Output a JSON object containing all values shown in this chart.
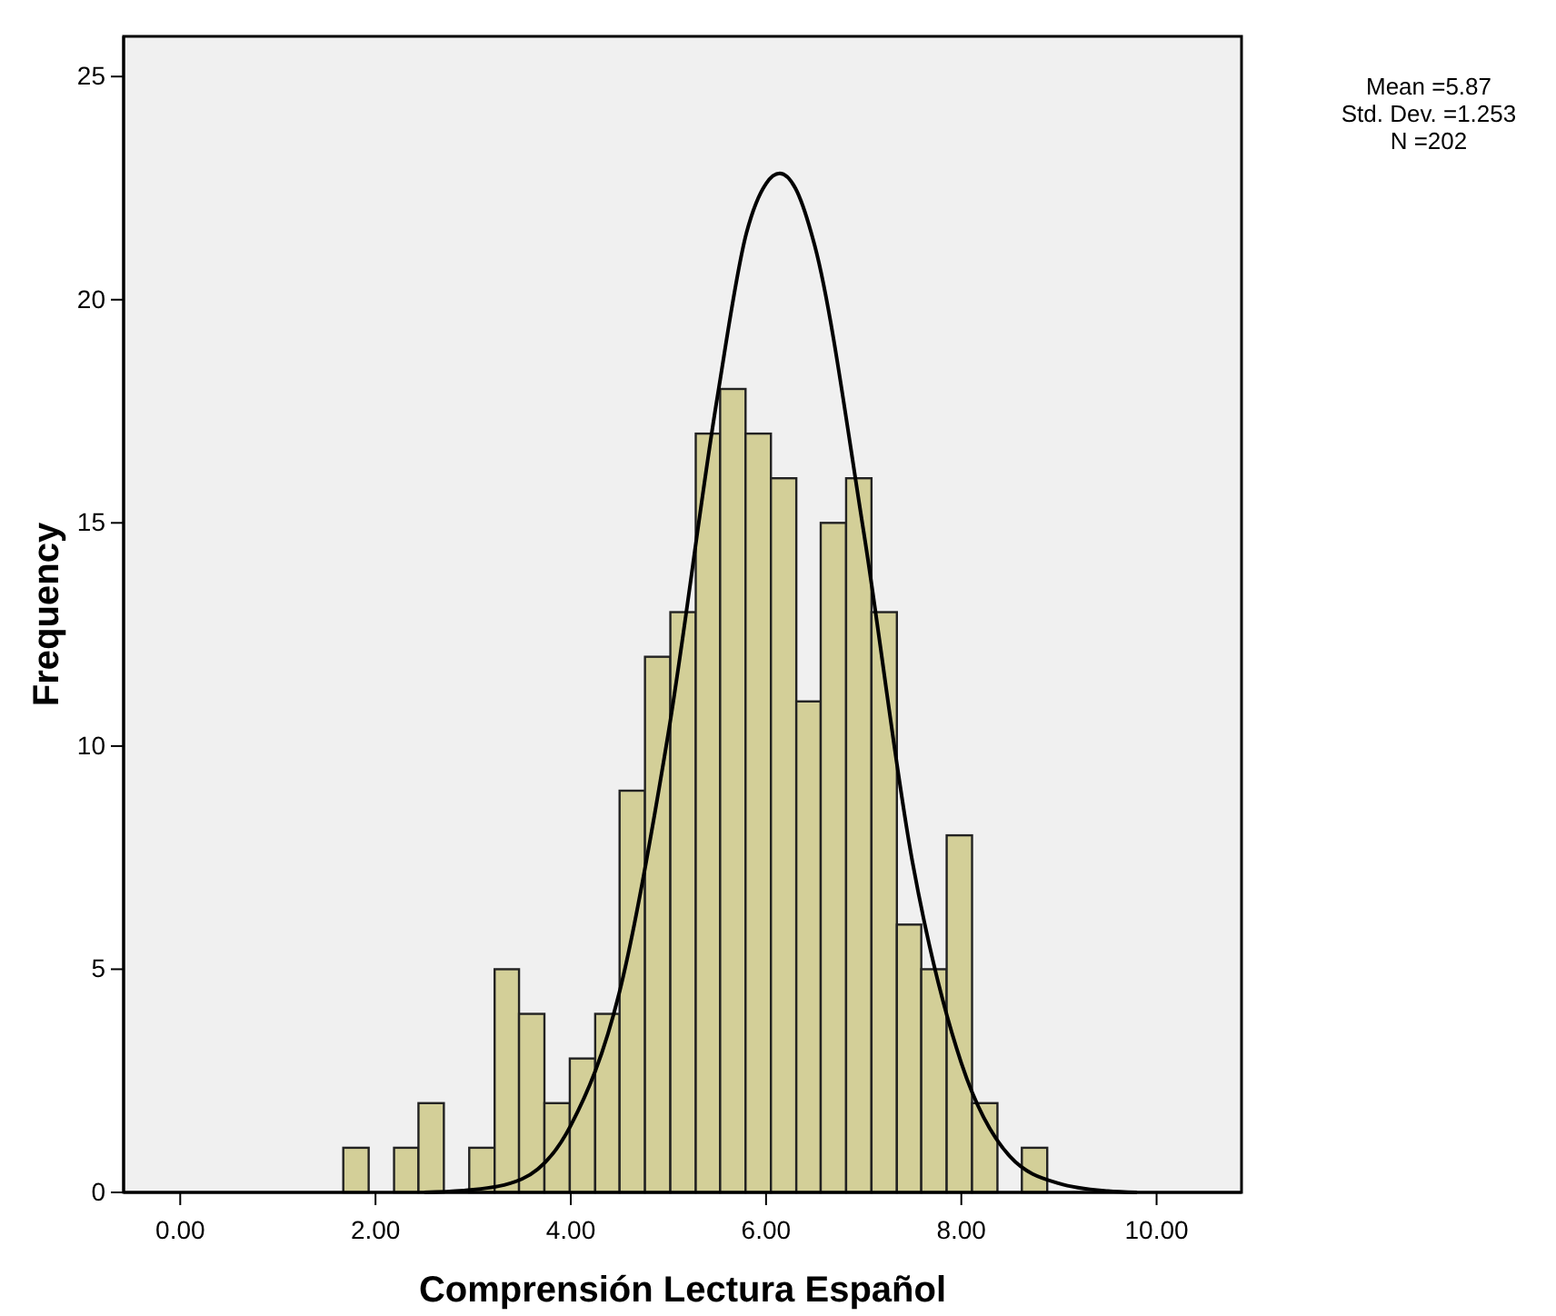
{
  "chart_data": {
    "type": "histogram",
    "xlabel": "Comprensión Lectura Español",
    "ylabel": "Frequency",
    "annotations": [
      "Mean =5.87",
      "Std. Dev. =1.253",
      "N =202"
    ],
    "bins": [
      1.67,
      1.93,
      2.19,
      2.44,
      2.7,
      2.96,
      3.22,
      3.47,
      3.73,
      3.99,
      4.25,
      4.5,
      4.76,
      5.02,
      5.28,
      5.53,
      5.79,
      6.05,
      6.31,
      6.56,
      6.82,
      7.08,
      7.34,
      7.59,
      7.85,
      8.11,
      8.37,
      8.62,
      8.88
    ],
    "values": [
      1,
      0,
      1,
      2,
      0,
      1,
      5,
      4,
      2,
      3,
      4,
      9,
      12,
      13,
      17,
      18,
      17,
      16,
      11,
      15,
      16,
      13,
      6,
      5,
      8,
      2,
      0,
      1
    ],
    "color": "#d3cf98",
    "series": [
      {
        "type": "line",
        "color": "#000000",
        "x": [
          2.5,
          3.0,
          3.5,
          4.0,
          4.5,
          5.0,
          5.5,
          5.8,
          6.0,
          6.14,
          6.3,
          6.5,
          7.0,
          7.5,
          8.0,
          8.5,
          9.0,
          9.5,
          9.8
        ],
        "values": [
          0,
          0.06,
          0.3,
          1.5,
          4.5,
          10.3,
          17.8,
          21.5,
          22.6,
          22.83,
          22.5,
          21.2,
          14.8,
          7.4,
          2.9,
          0.8,
          0.2,
          0.03,
          0
        ]
      }
    ],
    "xlim": [
      -0.58,
      10.87
    ],
    "ylim": [
      0,
      25.9
    ],
    "xticks": [
      {
        "value": 0,
        "label": "0.00"
      },
      {
        "value": 2,
        "label": "2.00"
      },
      {
        "value": 4,
        "label": "4.00"
      },
      {
        "value": 6,
        "label": "6.00"
      },
      {
        "value": 8,
        "label": "8.00"
      },
      {
        "value": 10,
        "label": "10.00"
      }
    ],
    "yticks": [
      0,
      5,
      10,
      15,
      20,
      25
    ],
    "grid": false,
    "marker": "none",
    "line_style": "solid"
  }
}
